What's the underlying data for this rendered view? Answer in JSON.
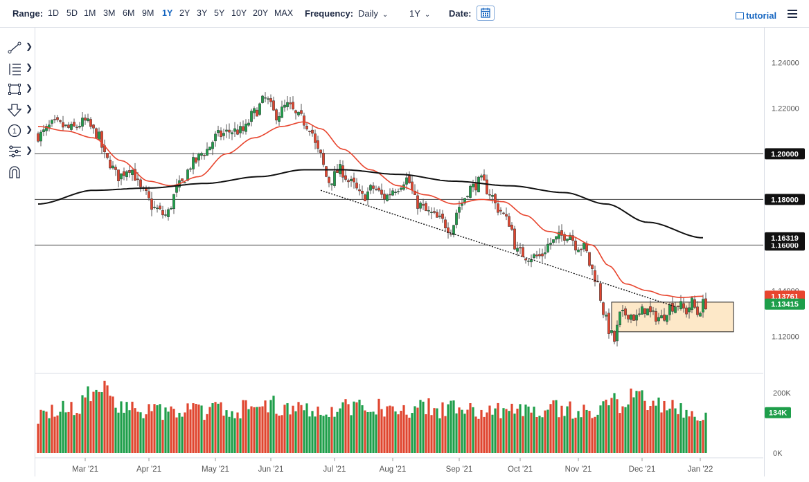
{
  "toolbar": {
    "range_label": "Range:",
    "ranges": [
      "1D",
      "5D",
      "1M",
      "3M",
      "6M",
      "9M",
      "1Y",
      "2Y",
      "3Y",
      "5Y",
      "10Y",
      "20Y",
      "MAX"
    ],
    "active_range": "1Y",
    "frequency_label": "Frequency:",
    "frequency_value": "Daily",
    "period_value": "1Y",
    "date_label": "Date:",
    "tutorial_label": "tutorial",
    "date_icon": "calendar-icon",
    "menu_icon": "hamburger-menu-icon"
  },
  "tools": [
    {
      "name": "line-tool-icon"
    },
    {
      "name": "fibonacci-tool-icon"
    },
    {
      "name": "rectangle-tool-icon"
    },
    {
      "name": "arrow-down-tool-icon"
    },
    {
      "name": "counter-tool-icon",
      "glyph": "1"
    },
    {
      "name": "pitchfork-tool-icon"
    },
    {
      "name": "magnet-tool-icon"
    }
  ],
  "colors": {
    "up": "#1e9e4a",
    "down": "#e0452f",
    "ma_short": "#e8452e",
    "ma_long": "#111111",
    "box_fill": "#fde8c8",
    "price_badge": "#1e9e4a",
    "ma_badge": "#e8452e",
    "level_badge": "#111111"
  },
  "chart_data": {
    "type": "candlestick",
    "y_axis": {
      "range": [
        1.108,
        1.248
      ],
      "ticks": [
        "1.24000",
        "1.22000",
        "1.20000",
        "1.18000",
        "1.16000",
        "1.14000",
        "1.12000"
      ],
      "grid": false
    },
    "x_axis": {
      "ticks": [
        "Mar '21",
        "Apr '21",
        "May '21",
        "Jun '21",
        "Jul '21",
        "Aug '21",
        "Sep '21",
        "Oct '21",
        "Nov '21",
        "Dec '21",
        "Jan '22"
      ]
    },
    "price_labels": {
      "last_price": "1.13415",
      "ma_short": "1.13761",
      "ma_long": "1.16319",
      "level_120": "1.20000",
      "level_118": "1.18000",
      "level_116": "1.16000"
    },
    "horizontal_levels": [
      1.2,
      1.18,
      1.16
    ],
    "close_anchors": [
      [
        0,
        1.208
      ],
      [
        6,
        1.213
      ],
      [
        12,
        1.211
      ],
      [
        17,
        1.214
      ],
      [
        21,
        1.209
      ],
      [
        25,
        1.197
      ],
      [
        29,
        1.19
      ],
      [
        33,
        1.194
      ],
      [
        38,
        1.183
      ],
      [
        42,
        1.176
      ],
      [
        46,
        1.173
      ],
      [
        51,
        1.186
      ],
      [
        56,
        1.196
      ],
      [
        60,
        1.201
      ],
      [
        65,
        1.208
      ],
      [
        70,
        1.21
      ],
      [
        74,
        1.21
      ],
      [
        78,
        1.218
      ],
      [
        82,
        1.224
      ],
      [
        86,
        1.217
      ],
      [
        90,
        1.221
      ],
      [
        94,
        1.216
      ],
      [
        98,
        1.212
      ],
      [
        101,
        1.201
      ],
      [
        105,
        1.188
      ],
      [
        109,
        1.193
      ],
      [
        113,
        1.187
      ],
      [
        117,
        1.181
      ],
      [
        121,
        1.185
      ],
      [
        125,
        1.181
      ],
      [
        129,
        1.185
      ],
      [
        133,
        1.189
      ],
      [
        137,
        1.178
      ],
      [
        141,
        1.174
      ],
      [
        145,
        1.171
      ],
      [
        149,
        1.167
      ],
      [
        152,
        1.177
      ],
      [
        156,
        1.185
      ],
      [
        160,
        1.188
      ],
      [
        163,
        1.183
      ],
      [
        166,
        1.176
      ],
      [
        170,
        1.17
      ],
      [
        173,
        1.157
      ],
      [
        177,
        1.155
      ],
      [
        181,
        1.155
      ],
      [
        185,
        1.161
      ],
      [
        189,
        1.164
      ],
      [
        192,
        1.165
      ],
      [
        194,
        1.16
      ],
      [
        197,
        1.159
      ],
      [
        200,
        1.149
      ],
      [
        202,
        1.143
      ],
      [
        204,
        1.131
      ],
      [
        206,
        1.123
      ],
      [
        208,
        1.118
      ],
      [
        210,
        1.129
      ],
      [
        213,
        1.13
      ],
      [
        216,
        1.128
      ],
      [
        219,
        1.132
      ],
      [
        222,
        1.129
      ],
      [
        225,
        1.128
      ],
      [
        228,
        1.133
      ],
      [
        231,
        1.134
      ],
      [
        234,
        1.131
      ],
      [
        236,
        1.135
      ],
      [
        238,
        1.13
      ],
      [
        240,
        1.1342
      ]
    ],
    "ma_short_anchors": [
      [
        0,
        1.212
      ],
      [
        10,
        1.21
      ],
      [
        20,
        1.207
      ],
      [
        30,
        1.197
      ],
      [
        40,
        1.188
      ],
      [
        48,
        1.186
      ],
      [
        58,
        1.19
      ],
      [
        68,
        1.2
      ],
      [
        78,
        1.207
      ],
      [
        88,
        1.212
      ],
      [
        96,
        1.214
      ],
      [
        102,
        1.211
      ],
      [
        110,
        1.202
      ],
      [
        120,
        1.193
      ],
      [
        130,
        1.186
      ],
      [
        140,
        1.182
      ],
      [
        150,
        1.178
      ],
      [
        160,
        1.18
      ],
      [
        168,
        1.179
      ],
      [
        176,
        1.173
      ],
      [
        184,
        1.166
      ],
      [
        192,
        1.164
      ],
      [
        200,
        1.16
      ],
      [
        206,
        1.151
      ],
      [
        212,
        1.143
      ],
      [
        220,
        1.14
      ],
      [
        226,
        1.138
      ],
      [
        232,
        1.137
      ],
      [
        240,
        1.1376
      ]
    ],
    "ma_long_anchors": [
      [
        0,
        1.178
      ],
      [
        20,
        1.184
      ],
      [
        40,
        1.185
      ],
      [
        60,
        1.187
      ],
      [
        80,
        1.19
      ],
      [
        96,
        1.193
      ],
      [
        110,
        1.193
      ],
      [
        130,
        1.191
      ],
      [
        150,
        1.188
      ],
      [
        170,
        1.186
      ],
      [
        190,
        1.183
      ],
      [
        205,
        1.178
      ],
      [
        220,
        1.17
      ],
      [
        240,
        1.1632
      ]
    ],
    "trendline": {
      "from": [
        102,
        1.184
      ],
      "to": [
        230,
        1.133
      ]
    },
    "consolidation_box": {
      "from": [
        207,
        1.135
      ],
      "to": [
        251,
        1.122
      ]
    },
    "volume": {
      "axis_ticks": [
        "200K",
        "0K"
      ],
      "range": [
        0,
        230000
      ],
      "last": "134K",
      "anchors": [
        [
          0,
          135000
        ],
        [
          17,
          170000
        ],
        [
          18,
          225000
        ],
        [
          40,
          145000
        ],
        [
          70,
          155000
        ],
        [
          90,
          170000
        ],
        [
          100,
          150000
        ],
        [
          110,
          165000
        ],
        [
          140,
          160000
        ],
        [
          170,
          150000
        ],
        [
          185,
          160000
        ],
        [
          200,
          145000
        ],
        [
          213,
          190000
        ],
        [
          215,
          205000
        ],
        [
          230,
          160000
        ],
        [
          240,
          134000
        ]
      ]
    }
  }
}
